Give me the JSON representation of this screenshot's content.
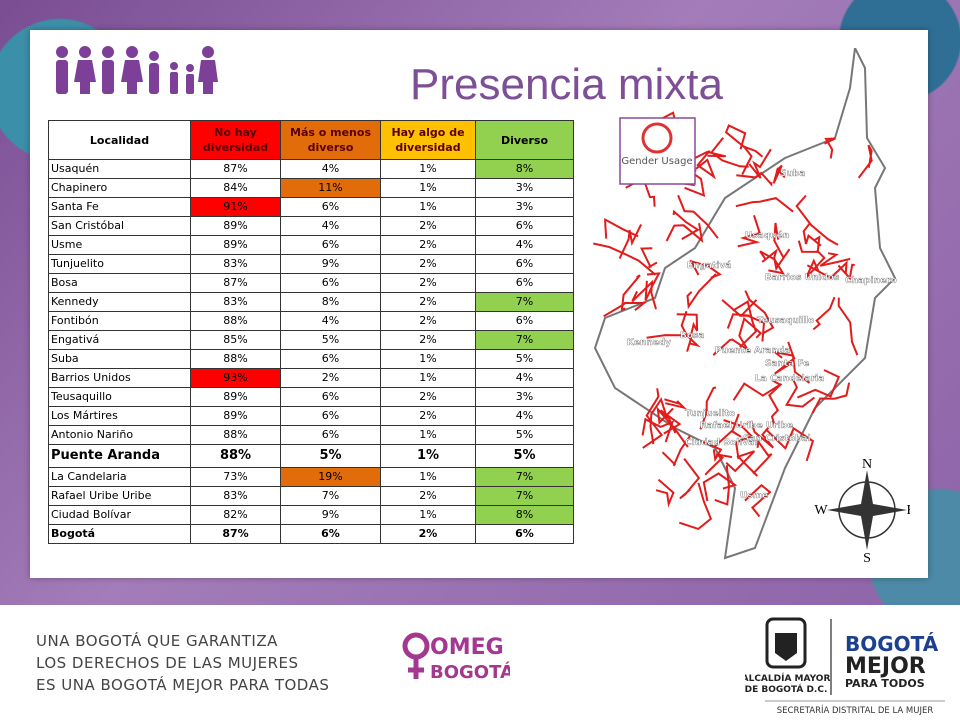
{
  "slide": {
    "title": "Presencia mixta",
    "badge": "Gender Usage",
    "table": {
      "header": [
        "Localidad",
        "No hay diversidad",
        "Más o menos diverso",
        "Hay algo de diversidad",
        "Diverso"
      ],
      "header_fills": [
        "#ffffff",
        "#ff0000",
        "#e26b0a",
        "#ffc000",
        "#92d050"
      ],
      "rows": [
        {
          "cells": [
            "Usaquén",
            "87%",
            "4%",
            "1%",
            "8%"
          ],
          "fills": [
            null,
            null,
            null,
            null,
            "#92d050"
          ]
        },
        {
          "cells": [
            "Chapinero",
            "84%",
            "11%",
            "1%",
            "3%"
          ],
          "fills": [
            null,
            null,
            "#e26b0a",
            null,
            null
          ]
        },
        {
          "cells": [
            "Santa Fe",
            "91%",
            "6%",
            "1%",
            "3%"
          ],
          "fills": [
            null,
            "#ff0000",
            null,
            null,
            null
          ]
        },
        {
          "cells": [
            "San Cristóbal",
            "89%",
            "4%",
            "2%",
            "6%"
          ],
          "fills": [
            null,
            null,
            null,
            null,
            null
          ]
        },
        {
          "cells": [
            "Usme",
            "89%",
            "6%",
            "2%",
            "4%"
          ],
          "fills": [
            null,
            null,
            null,
            null,
            null
          ]
        },
        {
          "cells": [
            "Tunjuelito",
            "83%",
            "9%",
            "2%",
            "6%"
          ],
          "fills": [
            null,
            null,
            null,
            null,
            null
          ]
        },
        {
          "cells": [
            "Bosa",
            "87%",
            "6%",
            "2%",
            "6%"
          ],
          "fills": [
            null,
            null,
            null,
            null,
            null
          ]
        },
        {
          "cells": [
            "Kennedy",
            "83%",
            "8%",
            "2%",
            "7%"
          ],
          "fills": [
            null,
            null,
            null,
            null,
            "#92d050"
          ]
        },
        {
          "cells": [
            "Fontibón",
            "88%",
            "4%",
            "2%",
            "6%"
          ],
          "fills": [
            null,
            null,
            null,
            null,
            null
          ]
        },
        {
          "cells": [
            "Engativá",
            "85%",
            "5%",
            "2%",
            "7%"
          ],
          "fills": [
            null,
            null,
            null,
            null,
            "#92d050"
          ]
        },
        {
          "cells": [
            "Suba",
            "88%",
            "6%",
            "1%",
            "5%"
          ],
          "fills": [
            null,
            null,
            null,
            null,
            null
          ]
        },
        {
          "cells": [
            "Barrios Unidos",
            "93%",
            "2%",
            "1%",
            "4%"
          ],
          "fills": [
            null,
            "#ff0000",
            null,
            null,
            null
          ]
        },
        {
          "cells": [
            "Teusaquillo",
            "89%",
            "6%",
            "2%",
            "3%"
          ],
          "fills": [
            null,
            null,
            null,
            null,
            null
          ]
        },
        {
          "cells": [
            "Los Mártires",
            "89%",
            "6%",
            "2%",
            "4%"
          ],
          "fills": [
            null,
            null,
            null,
            null,
            null
          ]
        },
        {
          "cells": [
            "Antonio Nariño",
            "88%",
            "6%",
            "1%",
            "5%"
          ],
          "fills": [
            null,
            null,
            null,
            null,
            null
          ]
        },
        {
          "cells": [
            "Puente Aranda",
            "88%",
            "5%",
            "1%",
            "5%"
          ],
          "fills": [
            null,
            null,
            null,
            null,
            null
          ],
          "emphasis": "large"
        },
        {
          "cells": [
            "La Candelaria",
            "73%",
            "19%",
            "1%",
            "7%"
          ],
          "fills": [
            null,
            null,
            "#e26b0a",
            null,
            "#92d050"
          ]
        },
        {
          "cells": [
            "Rafael Uribe Uribe",
            "83%",
            "7%",
            "2%",
            "7%"
          ],
          "fills": [
            null,
            null,
            null,
            null,
            "#92d050"
          ]
        },
        {
          "cells": [
            "Ciudad Bolívar",
            "82%",
            "9%",
            "1%",
            "8%"
          ],
          "fills": [
            null,
            null,
            null,
            null,
            "#92d050"
          ]
        },
        {
          "cells": [
            "Bogotá",
            "87%",
            "6%",
            "2%",
            "6%"
          ],
          "fills": [
            null,
            null,
            null,
            null,
            null
          ],
          "emphasis": "bold"
        }
      ]
    },
    "map_labels": [
      "Suba",
      "Usaquén",
      "Engativá",
      "Barrios Unidos",
      "Chapinero",
      "Teusaquillo",
      "Kennedy",
      "Bosa",
      "Puente Aranda",
      "Santa Fe",
      "La Candelaria",
      "Tunjuelito",
      "Rafael Uribe Uribe",
      "Ciudad Bolívar",
      "San Cristóbal",
      "Usme"
    ],
    "compass": {
      "n": "N",
      "s": "S",
      "e": "E",
      "w": "W"
    }
  },
  "footer": {
    "slogan": [
      "UNA BOGOTÁ QUE GARANTIZA",
      "LOS DERECHOS DE LAS MUJERES",
      "ES UNA BOGOTÁ MEJOR PARA TODAS"
    ],
    "omeg": [
      "OMEG",
      "BOGOTÁ"
    ],
    "alcaldia": [
      "ALCALDÍA MAYOR",
      "DE BOGOTÁ D.C."
    ],
    "bogota": [
      "BOGOTÁ",
      "MEJOR",
      "PARA TODOS"
    ],
    "secretaria": "SECRETARÍA DISTRITAL DE LA MUJER"
  }
}
